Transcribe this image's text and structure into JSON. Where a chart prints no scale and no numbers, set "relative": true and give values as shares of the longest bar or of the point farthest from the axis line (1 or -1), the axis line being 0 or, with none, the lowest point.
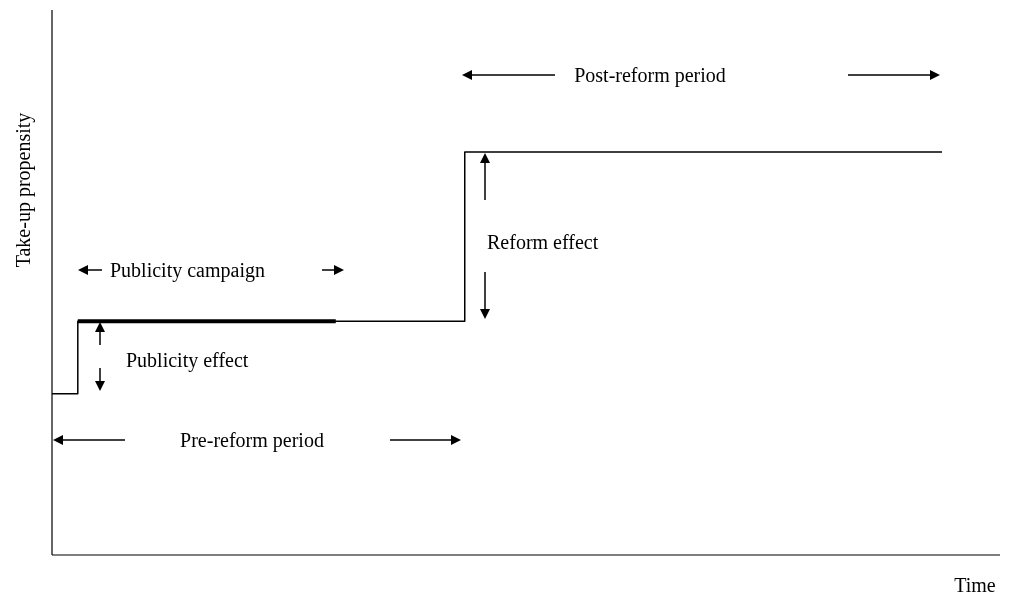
{
  "chart_data": {
    "type": "step",
    "relative": true,
    "xlabel": "Time",
    "ylabel": "Take-up propensity",
    "categories": [
      null,
      null,
      null,
      null,
      null,
      null,
      null,
      null,
      null,
      null,
      null,
      null,
      null,
      null,
      null,
      null,
      null,
      null,
      null,
      null,
      null,
      null,
      null,
      null,
      null,
      null,
      null,
      null,
      null,
      null,
      null,
      null,
      null,
      null,
      null,
      null,
      null,
      null,
      null,
      null,
      null,
      null,
      null,
      null,
      null,
      null,
      null,
      null,
      null,
      null,
      null,
      null,
      null,
      null,
      null,
      null,
      null,
      null,
      null,
      null,
      null,
      null,
      null,
      null,
      null,
      null,
      null,
      null,
      null,
      null
    ],
    "series": [
      {
        "color": "#000000",
        "values": [
          0.4,
          0.4,
          0.58,
          0.58,
          0.58,
          0.58,
          0.58,
          0.58,
          0.58,
          0.58,
          0.58,
          0.58,
          0.58,
          0.58,
          0.58,
          0.58,
          0.58,
          0.58,
          0.58,
          0.58,
          0.58,
          0.58,
          0.58,
          0.58,
          0.58,
          0.58,
          0.58,
          0.58,
          0.58,
          0.58,
          0.58,
          0.58,
          1,
          1,
          1,
          1,
          1,
          1,
          1,
          1,
          1,
          1,
          1,
          1,
          1,
          1,
          1,
          1,
          1,
          1,
          1,
          1,
          1,
          1,
          1,
          1,
          1,
          1,
          1,
          1,
          1,
          1,
          1,
          1,
          1,
          1,
          1,
          1,
          1,
          1
        ]
      },
      {
        "type": "line",
        "color": "#000000",
        "values": [
          null,
          null,
          0.58,
          0.58,
          0.58,
          0.58,
          0.58,
          0.58,
          0.58,
          0.58,
          0.58,
          0.58,
          0.58,
          0.58,
          0.58,
          0.58,
          0.58,
          0.58,
          0.58,
          0.58,
          0.58,
          0.58,
          0.58,
          null,
          null,
          null,
          null,
          null,
          null,
          null,
          null,
          null,
          null,
          null,
          null,
          null,
          null,
          null,
          null,
          null,
          null,
          null,
          null,
          null,
          null,
          null,
          null,
          null,
          null,
          null,
          null,
          null,
          null,
          null,
          null,
          null,
          null,
          null,
          null,
          null,
          null,
          null,
          null,
          null,
          null,
          null,
          null,
          null,
          null,
          null
        ]
      }
    ],
    "annotations": [
      "Post-reform period",
      "Reform effect",
      "Publicity campaign",
      "Publicity effect",
      "Pre-reform period"
    ]
  }
}
